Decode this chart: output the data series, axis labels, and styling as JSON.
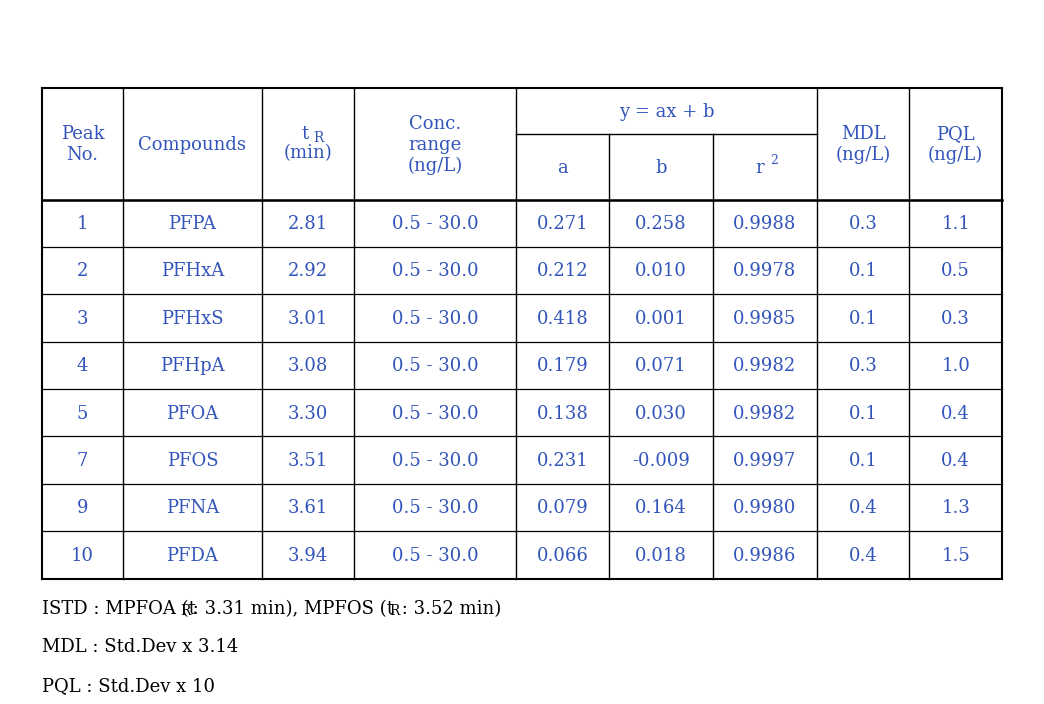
{
  "data_rows": [
    [
      "1",
      "PFPA",
      "2.81",
      "0.5 - 30.0",
      "0.271",
      "0.258",
      "0.9988",
      "0.3",
      "1.1"
    ],
    [
      "2",
      "PFHxA",
      "2.92",
      "0.5 - 30.0",
      "0.212",
      "0.010",
      "0.9978",
      "0.1",
      "0.5"
    ],
    [
      "3",
      "PFHxS",
      "3.01",
      "0.5 - 30.0",
      "0.418",
      "0.001",
      "0.9985",
      "0.1",
      "0.3"
    ],
    [
      "4",
      "PFHpA",
      "3.08",
      "0.5 - 30.0",
      "0.179",
      "0.071",
      "0.9982",
      "0.3",
      "1.0"
    ],
    [
      "5",
      "PFOA",
      "3.30",
      "0.5 - 30.0",
      "0.138",
      "0.030",
      "0.9982",
      "0.1",
      "0.4"
    ],
    [
      "7",
      "PFOS",
      "3.51",
      "0.5 - 30.0",
      "0.231",
      "-0.009",
      "0.9997",
      "0.1",
      "0.4"
    ],
    [
      "9",
      "PFNA",
      "3.61",
      "0.5 - 30.0",
      "0.079",
      "0.164",
      "0.9980",
      "0.4",
      "1.3"
    ],
    [
      "10",
      "PFDA",
      "3.94",
      "0.5 - 30.0",
      "0.066",
      "0.018",
      "0.9986",
      "0.4",
      "1.5"
    ]
  ],
  "footnote1": "ISTD : MPFOA (t",
  "footnote1b": " : 3.31 min), MPFOS (t",
  "footnote1c": " : 3.52 min)",
  "footnote2": "MDL : Std.Dev x 3.14",
  "footnote3": "PQL : Std.Dev x 10",
  "text_color": "#3355bb",
  "border_color": "#000000",
  "bg_color": "#ffffff",
  "font_size": 13,
  "footnote_font_size": 13,
  "col_widths_rel": [
    0.7,
    1.2,
    0.8,
    1.4,
    0.8,
    0.9,
    0.9,
    0.8,
    0.8
  ]
}
